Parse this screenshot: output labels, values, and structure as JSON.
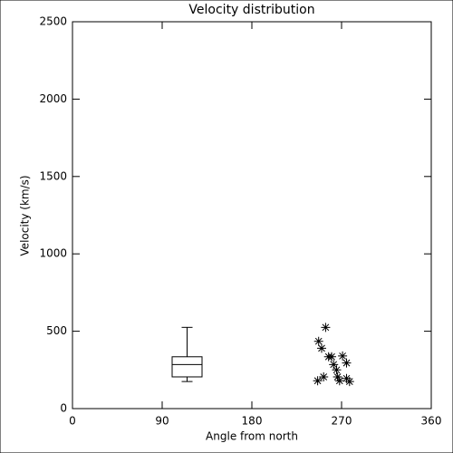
{
  "chart_data": {
    "type": "scatter",
    "title": "Velocity distribution",
    "xlabel": "Angle from north",
    "ylabel": "Velocity (km/s)",
    "xlim": [
      0,
      360
    ],
    "xticks": [
      0,
      90,
      180,
      270,
      360
    ],
    "ylim": [
      0,
      2500
    ],
    "yticks": [
      0,
      500,
      1000,
      1500,
      2000,
      2500
    ],
    "color": "#000000",
    "marker": "asterisk",
    "x": [
      254,
      247,
      250,
      252,
      246,
      257,
      260,
      262,
      265,
      266,
      268,
      271,
      275,
      275,
      278
    ],
    "values": [
      525,
      435,
      390,
      205,
      180,
      335,
      335,
      285,
      250,
      205,
      180,
      340,
      295,
      195,
      175
    ],
    "box": {
      "position": 115,
      "min": 175,
      "q1": 205,
      "median": 285,
      "q3": 335,
      "max": 525
    }
  }
}
